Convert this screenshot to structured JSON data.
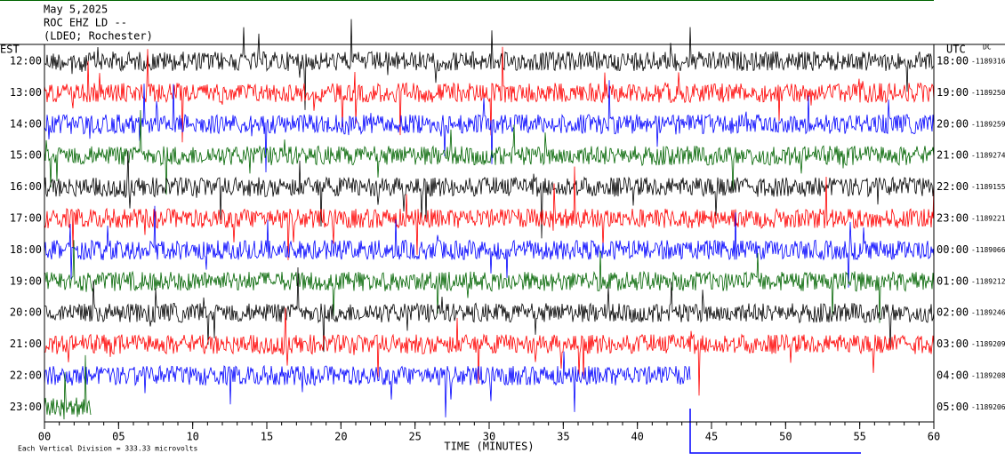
{
  "header": {
    "date": "May 5,2025",
    "station": "ROC EHZ LD --",
    "location": "(LDEO; Rochester)"
  },
  "chart_data": {
    "type": "helicorder",
    "left_axis_label": "EST",
    "right_axis_label": "UTC",
    "dc_label": "DC",
    "rows": [
      {
        "est": "12:00",
        "utc": "18:00",
        "dc": "-1189316",
        "color": "#000000"
      },
      {
        "est": "13:00",
        "utc": "19:00",
        "dc": "-1189250",
        "color": "#ff0000"
      },
      {
        "est": "14:00",
        "utc": "20:00",
        "dc": "-1189259",
        "color": "#0000ff"
      },
      {
        "est": "15:00",
        "utc": "21:00",
        "dc": "-1189274",
        "color": "#006400"
      },
      {
        "est": "16:00",
        "utc": "22:00",
        "dc": "-1189155",
        "color": "#000000"
      },
      {
        "est": "17:00",
        "utc": "23:00",
        "dc": "-1189221",
        "color": "#ff0000"
      },
      {
        "est": "18:00",
        "utc": "00:00",
        "dc": "-1189066",
        "color": "#0000ff"
      },
      {
        "est": "19:00",
        "utc": "01:00",
        "dc": "-1189212",
        "color": "#006400"
      },
      {
        "est": "20:00",
        "utc": "02:00",
        "dc": "-1189246",
        "color": "#000000"
      },
      {
        "est": "21:00",
        "utc": "03:00",
        "dc": "-1189209",
        "color": "#ff0000"
      },
      {
        "est": "22:00",
        "utc": "04:00",
        "dc": "-1189208",
        "color": "#0000ff"
      },
      {
        "est": "23:00",
        "utc": "05:00",
        "dc": "-1189206",
        "color": "#006400"
      }
    ],
    "xlim": [
      0,
      60
    ],
    "xticks": [
      {
        "value": 0,
        "label": "00"
      },
      {
        "value": 5,
        "label": "05"
      },
      10,
      15,
      20,
      25,
      30,
      35,
      40,
      45,
      50,
      55,
      60
    ],
    "x_label": "TIME (MINUTES)",
    "footer": "Each Vertical Division =  333.33 microvolts"
  }
}
